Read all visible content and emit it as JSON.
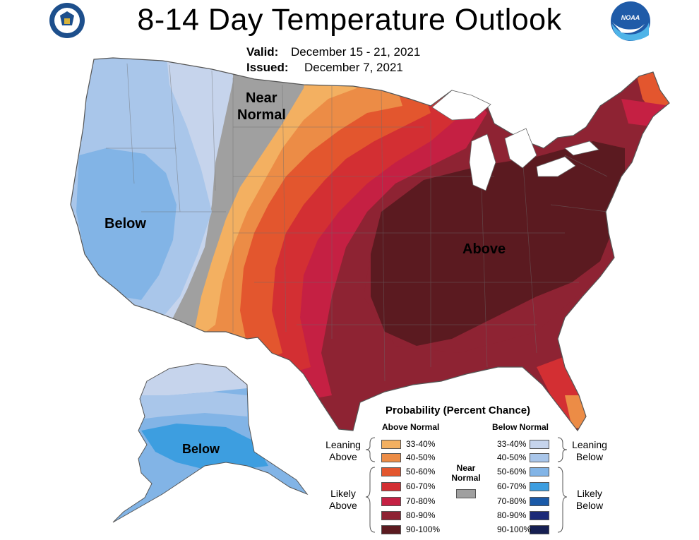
{
  "header": {
    "title": "8-14 Day Temperature Outlook",
    "valid_label": "Valid:",
    "valid_value": "December 15 - 21, 2021",
    "issued_label": "Issued:",
    "issued_value": "December 7, 2021"
  },
  "logos": {
    "commerce": "department-of-commerce-seal",
    "noaa_text": "NOAA"
  },
  "map_labels": {
    "near_normal_1": "Near",
    "near_normal_2": "Normal",
    "below": "Below",
    "above": "Above",
    "alaska_below": "Below"
  },
  "legend": {
    "title": "Probability (Percent Chance)",
    "above_head": "Above Normal",
    "below_head": "Below Normal",
    "near_1": "Near",
    "near_2": "Normal",
    "leaning_above_1": "Leaning",
    "leaning_above_2": "Above",
    "likely_above_1": "Likely",
    "likely_above_2": "Above",
    "leaning_below_1": "Leaning",
    "leaning_below_2": "Below",
    "likely_below_1": "Likely",
    "likely_below_2": "Below",
    "above": [
      {
        "label": "33-40%",
        "color": "#f3b061"
      },
      {
        "label": "40-50%",
        "color": "#ec8c46"
      },
      {
        "label": "50-60%",
        "color": "#e3562e"
      },
      {
        "label": "60-70%",
        "color": "#d32f33"
      },
      {
        "label": "70-80%",
        "color": "#c52043"
      },
      {
        "label": "80-90%",
        "color": "#8e2333"
      },
      {
        "label": "90-100%",
        "color": "#5b1a20"
      }
    ],
    "below": [
      {
        "label": "33-40%",
        "color": "#c6d4ec"
      },
      {
        "label": "40-50%",
        "color": "#a9c6ea"
      },
      {
        "label": "50-60%",
        "color": "#82b4e6"
      },
      {
        "label": "60-70%",
        "color": "#3d9ee0"
      },
      {
        "label": "70-80%",
        "color": "#1a5aa8"
      },
      {
        "label": "80-90%",
        "color": "#1c2a78"
      },
      {
        "label": "90-100%",
        "color": "#161f52"
      }
    ],
    "near_color": "#a0a0a0"
  }
}
